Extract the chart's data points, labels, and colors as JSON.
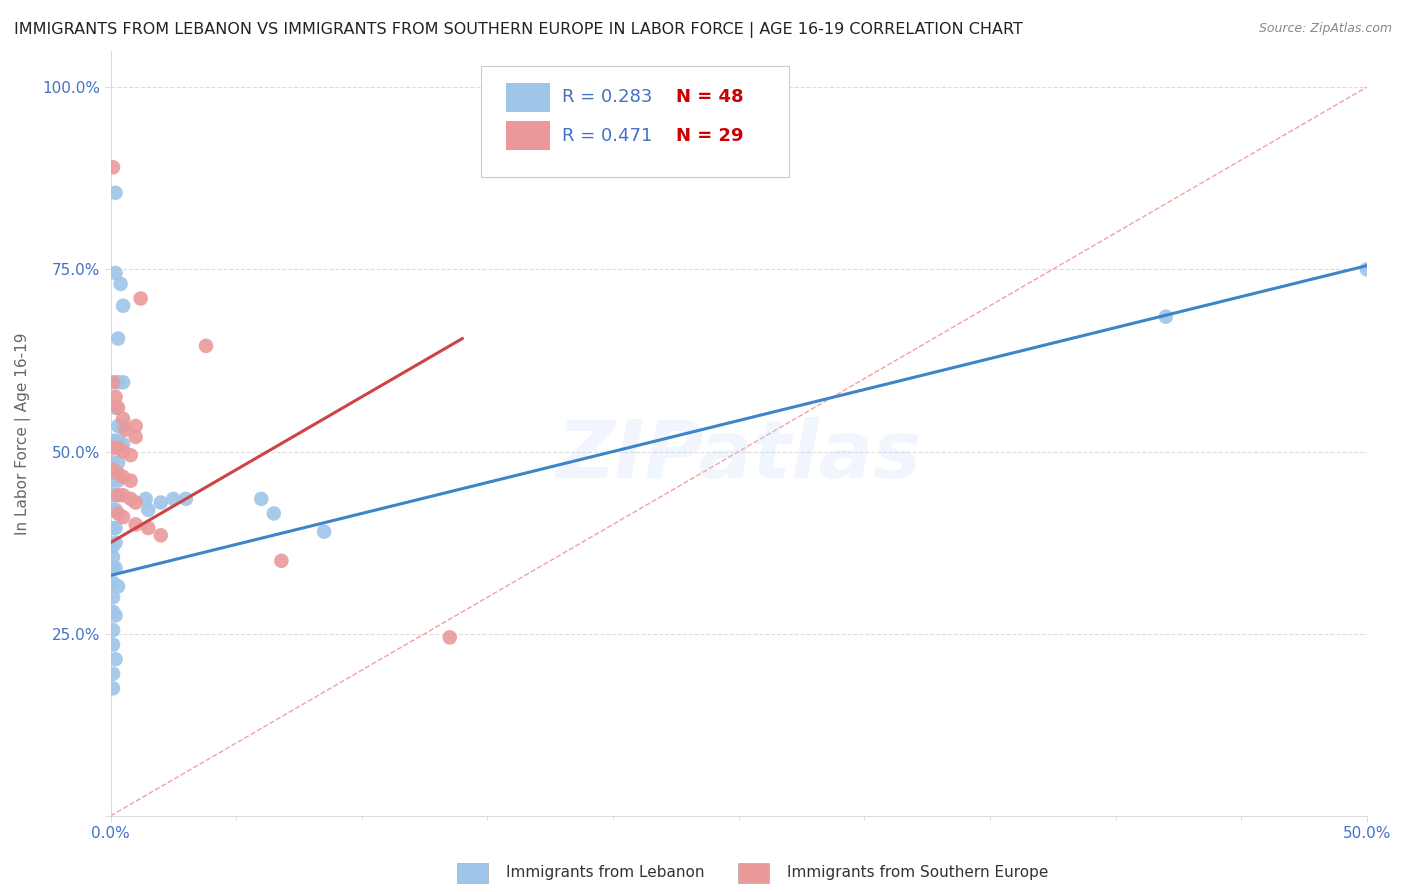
{
  "title": "IMMIGRANTS FROM LEBANON VS IMMIGRANTS FROM SOUTHERN EUROPE IN LABOR FORCE | AGE 16-19 CORRELATION CHART",
  "source": "Source: ZipAtlas.com",
  "ylabel": "In Labor Force | Age 16-19",
  "xlim": [
    0.0,
    0.5
  ],
  "ylim": [
    0.0,
    1.05
  ],
  "legend_r1": "R = 0.283",
  "legend_n1": "N = 48",
  "legend_r2": "R = 0.471",
  "legend_n2": "N = 29",
  "color_blue": "#9fc5e8",
  "color_pink": "#ea9999",
  "color_line_blue": "#3d85c8",
  "color_line_pink": "#cc4444",
  "color_diag": "#f4a0a0",
  "color_axis_label": "#4472c4",
  "color_watermark": "#c9daf8",
  "background_color": "#ffffff",
  "scatter_blue": [
    [
      0.002,
      0.855
    ],
    [
      0.005,
      0.7
    ],
    [
      0.004,
      0.73
    ],
    [
      0.002,
      0.745
    ],
    [
      0.003,
      0.655
    ],
    [
      0.003,
      0.595
    ],
    [
      0.005,
      0.595
    ],
    [
      0.002,
      0.56
    ],
    [
      0.003,
      0.535
    ],
    [
      0.005,
      0.535
    ],
    [
      0.001,
      0.515
    ],
    [
      0.003,
      0.515
    ],
    [
      0.005,
      0.51
    ],
    [
      0.001,
      0.485
    ],
    [
      0.003,
      0.485
    ],
    [
      0.001,
      0.46
    ],
    [
      0.003,
      0.46
    ],
    [
      0.001,
      0.44
    ],
    [
      0.002,
      0.44
    ],
    [
      0.001,
      0.42
    ],
    [
      0.002,
      0.42
    ],
    [
      0.001,
      0.395
    ],
    [
      0.002,
      0.395
    ],
    [
      0.001,
      0.37
    ],
    [
      0.002,
      0.375
    ],
    [
      0.001,
      0.355
    ],
    [
      0.001,
      0.34
    ],
    [
      0.002,
      0.34
    ],
    [
      0.001,
      0.32
    ],
    [
      0.001,
      0.3
    ],
    [
      0.003,
      0.315
    ],
    [
      0.001,
      0.28
    ],
    [
      0.002,
      0.275
    ],
    [
      0.001,
      0.255
    ],
    [
      0.001,
      0.235
    ],
    [
      0.002,
      0.215
    ],
    [
      0.001,
      0.195
    ],
    [
      0.001,
      0.175
    ],
    [
      0.014,
      0.435
    ],
    [
      0.015,
      0.42
    ],
    [
      0.02,
      0.43
    ],
    [
      0.025,
      0.435
    ],
    [
      0.03,
      0.435
    ],
    [
      0.06,
      0.435
    ],
    [
      0.065,
      0.415
    ],
    [
      0.085,
      0.39
    ],
    [
      0.42,
      0.685
    ],
    [
      0.5,
      0.75
    ]
  ],
  "scatter_pink": [
    [
      0.001,
      0.89
    ],
    [
      0.012,
      0.71
    ],
    [
      0.038,
      0.645
    ],
    [
      0.001,
      0.595
    ],
    [
      0.002,
      0.575
    ],
    [
      0.003,
      0.56
    ],
    [
      0.005,
      0.545
    ],
    [
      0.006,
      0.53
    ],
    [
      0.01,
      0.535
    ],
    [
      0.01,
      0.52
    ],
    [
      0.001,
      0.505
    ],
    [
      0.003,
      0.505
    ],
    [
      0.005,
      0.5
    ],
    [
      0.008,
      0.495
    ],
    [
      0.001,
      0.475
    ],
    [
      0.003,
      0.47
    ],
    [
      0.005,
      0.465
    ],
    [
      0.008,
      0.46
    ],
    [
      0.003,
      0.44
    ],
    [
      0.005,
      0.44
    ],
    [
      0.008,
      0.435
    ],
    [
      0.01,
      0.43
    ],
    [
      0.003,
      0.415
    ],
    [
      0.005,
      0.41
    ],
    [
      0.01,
      0.4
    ],
    [
      0.015,
      0.395
    ],
    [
      0.02,
      0.385
    ],
    [
      0.068,
      0.35
    ],
    [
      0.135,
      0.245
    ]
  ],
  "blue_line_x": [
    0.0,
    0.5
  ],
  "blue_line_y": [
    0.33,
    0.755
  ],
  "pink_line_x": [
    0.0,
    0.14
  ],
  "pink_line_y": [
    0.375,
    0.655
  ],
  "diag_line_x": [
    0.0,
    0.5
  ],
  "diag_line_y": [
    0.0,
    1.0
  ],
  "title_fontsize": 11.5,
  "axis_label_fontsize": 11,
  "tick_fontsize": 11,
  "legend_fontsize": 13,
  "watermark_fontsize": 58,
  "watermark_alpha": 0.25,
  "watermark_text": "ZIPatlas"
}
